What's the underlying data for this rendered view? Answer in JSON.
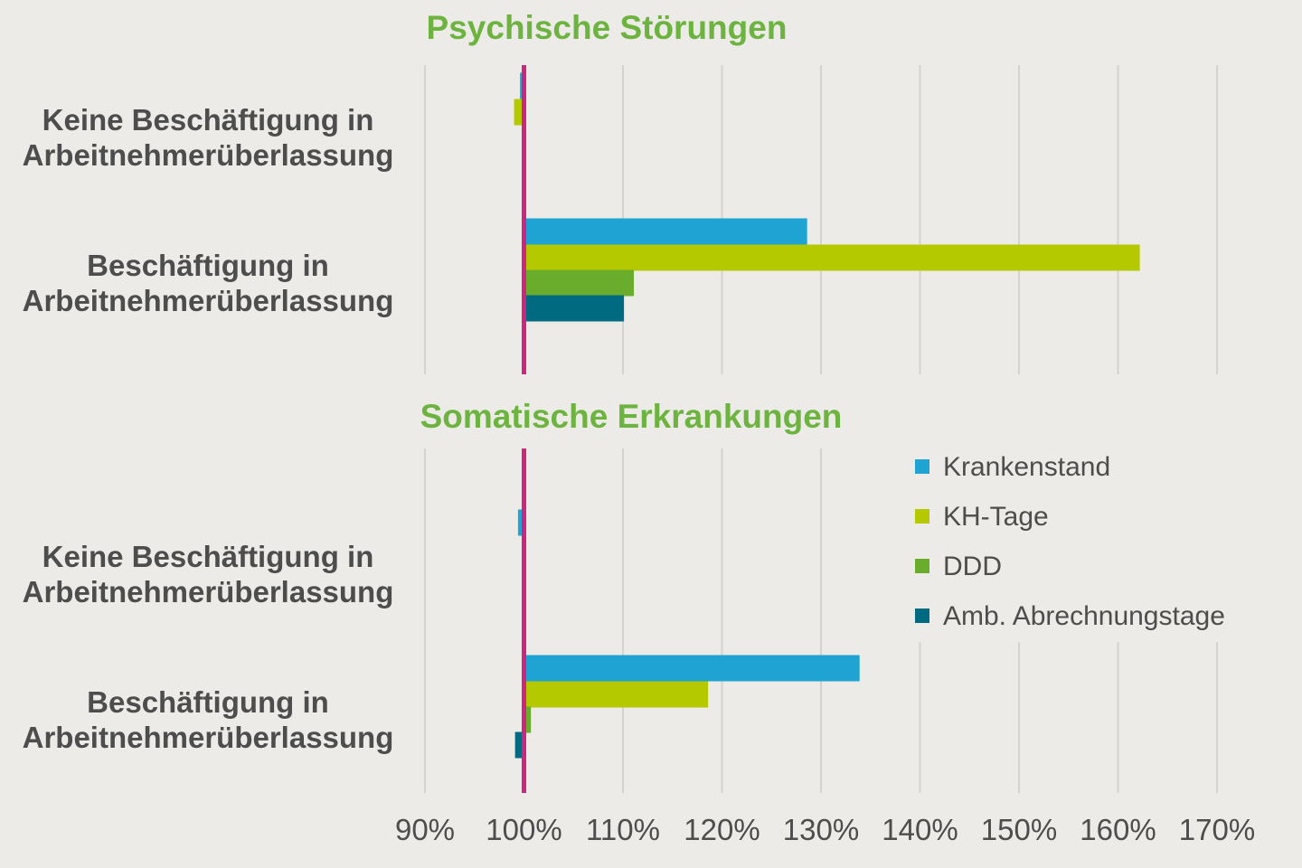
{
  "chart_data": {
    "type": "bar",
    "orientation": "horizontal",
    "xlim": [
      90,
      170
    ],
    "x_ticks": [
      "90%",
      "100%",
      "110%",
      "120%",
      "130%",
      "140%",
      "150%",
      "160%",
      "170%"
    ],
    "x_tick_values": [
      90,
      100,
      110,
      120,
      130,
      140,
      150,
      160,
      170
    ],
    "reference_line": 100,
    "grid": true,
    "legend_position": "right",
    "colors": {
      "title": "#6db33f",
      "reference_line": "#d0257e",
      "gridline": "#d4d3cf"
    },
    "series_meta": [
      {
        "name": "Krankenstand",
        "color": "#1ea3d2"
      },
      {
        "name": "KH-Tage",
        "color": "#b5c900"
      },
      {
        "name": "DDD",
        "color": "#6aad2c"
      },
      {
        "name": "Amb. Abrechnungstage",
        "color": "#006b80"
      }
    ],
    "panels": [
      {
        "title": "Psychische Störungen",
        "categories": [
          {
            "line1": "Keine Beschäftigung in",
            "line2": "Arbeitnehmerüberlassung"
          },
          {
            "line1": "Beschäftigung in",
            "line2": "Arbeitnehmerüberlassung"
          }
        ],
        "series": [
          {
            "name": "Krankenstand",
            "values": [
              99.6,
              128.6
            ]
          },
          {
            "name": "KH-Tage",
            "values": [
              99.0,
              162.2
            ]
          },
          {
            "name": "DDD",
            "values": [
              100.0,
              111.1
            ]
          },
          {
            "name": "Amb. Abrechnungstage",
            "values": [
              100.0,
              110.1
            ]
          }
        ]
      },
      {
        "title": "Somatische Erkrankungen",
        "categories": [
          {
            "line1": "Keine Beschäftigung in",
            "line2": "Arbeitnehmerüberlassung"
          },
          {
            "line1": "Beschäftigung in",
            "line2": "Arbeitnehmerüberlassung"
          }
        ],
        "series": [
          {
            "name": "Krankenstand",
            "values": [
              99.4,
              133.9
            ]
          },
          {
            "name": "KH-Tage",
            "values": [
              99.8,
              118.6
            ]
          },
          {
            "name": "DDD",
            "values": [
              100.0,
              100.7
            ]
          },
          {
            "name": "Amb. Abrechnungstage",
            "values": [
              100.0,
              99.1
            ]
          }
        ]
      }
    ]
  }
}
